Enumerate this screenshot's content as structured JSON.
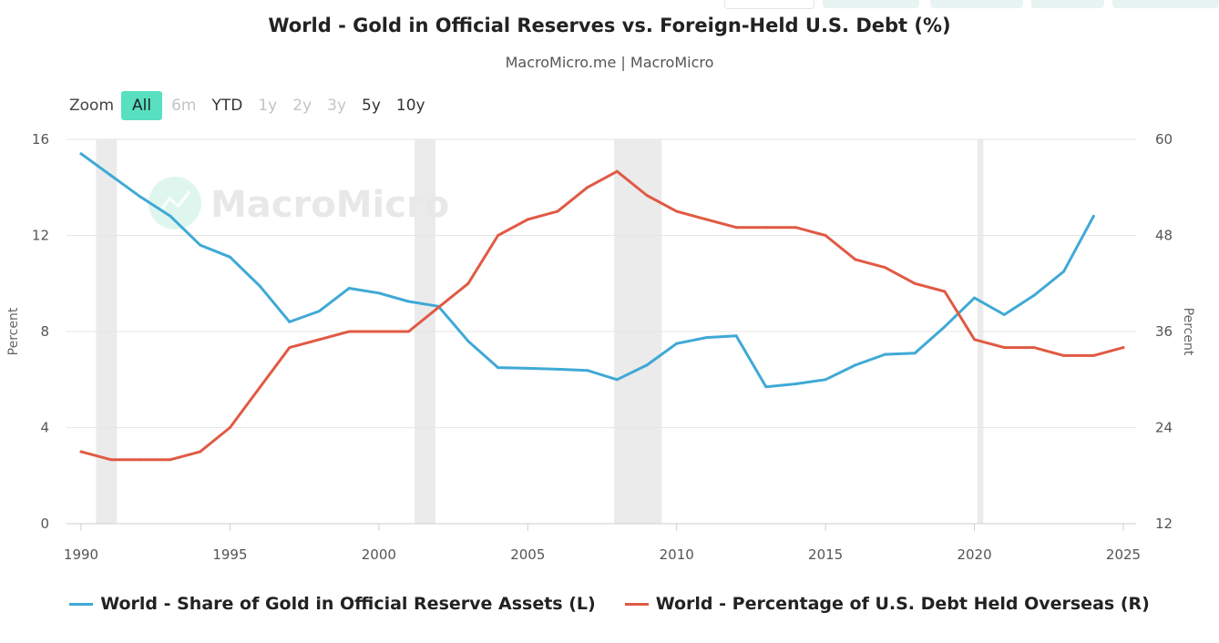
{
  "title": "World - Gold in Official Reserves vs. Foreign-Held U.S. Debt (%)",
  "subtitle": "MacroMicro.me | MacroMicro",
  "watermark": "MacroMicro",
  "zoom": {
    "label": "Zoom",
    "buttons": [
      {
        "label": "All",
        "state": "active"
      },
      {
        "label": "6m",
        "state": "disabled"
      },
      {
        "label": "YTD",
        "state": "enabled"
      },
      {
        "label": "1y",
        "state": "disabled"
      },
      {
        "label": "2y",
        "state": "disabled"
      },
      {
        "label": "3y",
        "state": "disabled"
      },
      {
        "label": "5y",
        "state": "enabled"
      },
      {
        "label": "10y",
        "state": "enabled"
      }
    ]
  },
  "colors": {
    "gold": "#3fa9d6",
    "debt": "#e05a44",
    "grid": "#e6e6e6",
    "recession": "#ebebeb",
    "zoom_active": "#58e0c0"
  },
  "chart_data": {
    "type": "line",
    "title": "World - Gold in Official Reserves vs. Foreign-Held U.S. Debt (%)",
    "x_range": [
      1990,
      2025
    ],
    "x_ticks": [
      "1990",
      "1995",
      "2000",
      "2005",
      "2010",
      "2015",
      "2020",
      "2025"
    ],
    "left_axis": {
      "label": "Percent",
      "range": [
        0,
        16
      ],
      "ticks": [
        "0",
        "4",
        "8",
        "12",
        "16"
      ]
    },
    "right_axis": {
      "label": "Percent",
      "range": [
        12,
        60
      ],
      "ticks": [
        "12",
        "24",
        "36",
        "48",
        "60"
      ]
    },
    "recession_bands": [
      [
        1990.5,
        1991.2
      ],
      [
        2001.2,
        2001.9
      ],
      [
        2007.9,
        2009.5
      ],
      [
        2020.1,
        2020.3
      ]
    ],
    "series": [
      {
        "name": "World - Share of Gold in Official Reserve Assets (L)",
        "axis": "left",
        "x": [
          1990,
          1991,
          1992,
          1993,
          1994,
          1995,
          1996,
          1997,
          1998,
          1999,
          2000,
          2001,
          2002,
          2003,
          2004,
          2005,
          2006,
          2007,
          2008,
          2009,
          2010,
          2011,
          2012,
          2013,
          2014,
          2015,
          2016,
          2017,
          2018,
          2019,
          2020,
          2021,
          2022,
          2023,
          2024
        ],
        "values": [
          15.4,
          14.5,
          13.6,
          12.8,
          11.6,
          11.1,
          9.9,
          8.4,
          8.85,
          9.8,
          9.6,
          9.25,
          9.05,
          7.6,
          6.5,
          6.47,
          6.43,
          6.38,
          6.0,
          6.6,
          7.5,
          7.75,
          7.82,
          5.7,
          5.82,
          6.0,
          6.6,
          7.05,
          7.1,
          8.2,
          9.4,
          8.7,
          9.5,
          10.5,
          12.8
        ]
      },
      {
        "name": "World - Percentage of U.S. Debt Held Overseas (R)",
        "axis": "right",
        "x": [
          1990,
          1991,
          1992,
          1993,
          1994,
          1995,
          1996,
          1997,
          1998,
          1999,
          2000,
          2001,
          2002,
          2003,
          2004,
          2005,
          2006,
          2007,
          2008,
          2009,
          2010,
          2011,
          2012,
          2013,
          2014,
          2015,
          2016,
          2017,
          2018,
          2019,
          2020,
          2021,
          2022,
          2023,
          2024,
          2025
        ],
        "values": [
          21,
          20,
          20,
          20,
          21,
          24,
          29,
          34,
          35,
          36,
          36,
          36,
          39,
          42,
          48,
          50,
          51,
          54,
          56,
          53,
          51,
          50,
          49,
          49,
          49,
          48,
          45,
          44,
          42,
          41,
          35,
          34,
          34,
          33,
          33,
          34
        ]
      }
    ]
  }
}
